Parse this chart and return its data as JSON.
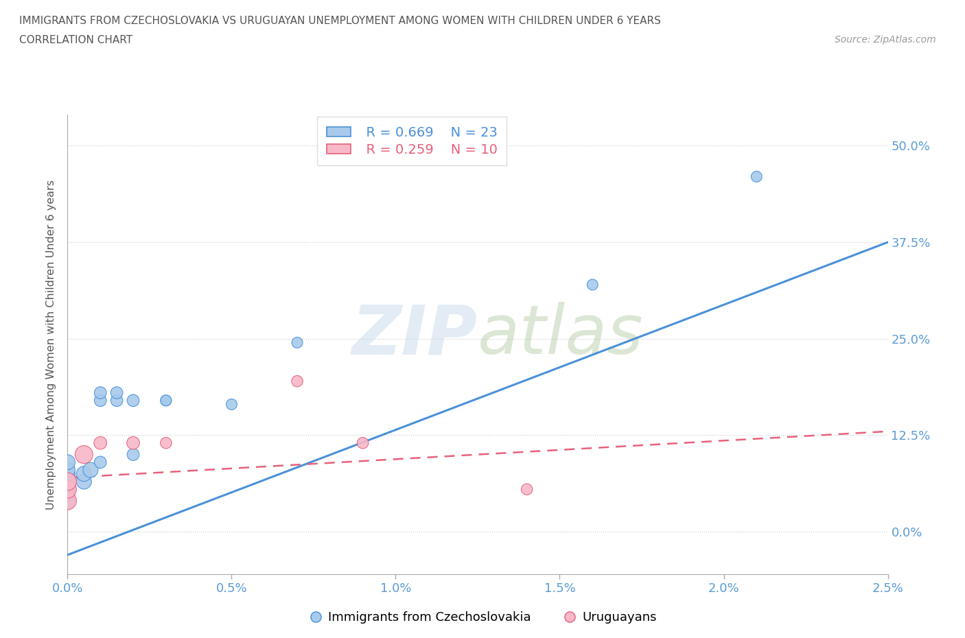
{
  "title_line1": "IMMIGRANTS FROM CZECHOSLOVAKIA VS URUGUAYAN UNEMPLOYMENT AMONG WOMEN WITH CHILDREN UNDER 6 YEARS",
  "title_line2": "CORRELATION CHART",
  "source": "Source: ZipAtlas.com",
  "ylabel": "Unemployment Among Women with Children Under 6 years",
  "xlim": [
    0.0,
    0.025
  ],
  "ylim": [
    -0.055,
    0.54
  ],
  "yticks": [
    0.0,
    0.125,
    0.25,
    0.375,
    0.5
  ],
  "ytick_labels": [
    "0.0%",
    "12.5%",
    "25.0%",
    "37.5%",
    "50.0%"
  ],
  "xticks": [
    0.0,
    0.005,
    0.01,
    0.015,
    0.02,
    0.025
  ],
  "xtick_labels": [
    "0.0%",
    "0.5%",
    "1.0%",
    "1.5%",
    "2.0%",
    "2.5%"
  ],
  "blue_label": "Immigrants from Czechoslovakia",
  "pink_label": "Uruguayans",
  "blue_R": "R = 0.669",
  "blue_N": "N = 23",
  "pink_R": "R = 0.259",
  "pink_N": "N = 10",
  "blue_color": "#A8CAEC",
  "pink_color": "#F7B8C8",
  "blue_line_color": "#4A90D9",
  "pink_line_color": "#E8607A",
  "axis_color": "#5B9BD5",
  "watermark_color": "#C8D8EA",
  "grid_color": "#C8C8C8",
  "bg_color": "#FFFFFF",
  "blue_scatter_x": [
    0.0,
    0.0,
    0.0,
    0.0,
    0.0,
    0.0,
    0.0,
    0.0005,
    0.0005,
    0.0007,
    0.001,
    0.001,
    0.001,
    0.0015,
    0.0015,
    0.002,
    0.002,
    0.003,
    0.003,
    0.005,
    0.007,
    0.016,
    0.021
  ],
  "blue_scatter_y": [
    0.04,
    0.05,
    0.06,
    0.07,
    0.075,
    0.08,
    0.09,
    0.065,
    0.075,
    0.08,
    0.17,
    0.18,
    0.09,
    0.17,
    0.18,
    0.1,
    0.17,
    0.17,
    0.17,
    0.165,
    0.245,
    0.32,
    0.46
  ],
  "pink_scatter_x": [
    0.0,
    0.0,
    0.0,
    0.0005,
    0.001,
    0.002,
    0.003,
    0.007,
    0.009,
    0.014
  ],
  "pink_scatter_y": [
    0.04,
    0.055,
    0.065,
    0.1,
    0.115,
    0.115,
    0.115,
    0.195,
    0.115,
    0.055
  ],
  "blue_trend_x": [
    0.0,
    0.025
  ],
  "blue_trend_y": [
    -0.03,
    0.375
  ],
  "pink_trend_x": [
    0.0,
    0.025
  ],
  "pink_trend_y": [
    0.07,
    0.13
  ],
  "bubble_scale": 300
}
